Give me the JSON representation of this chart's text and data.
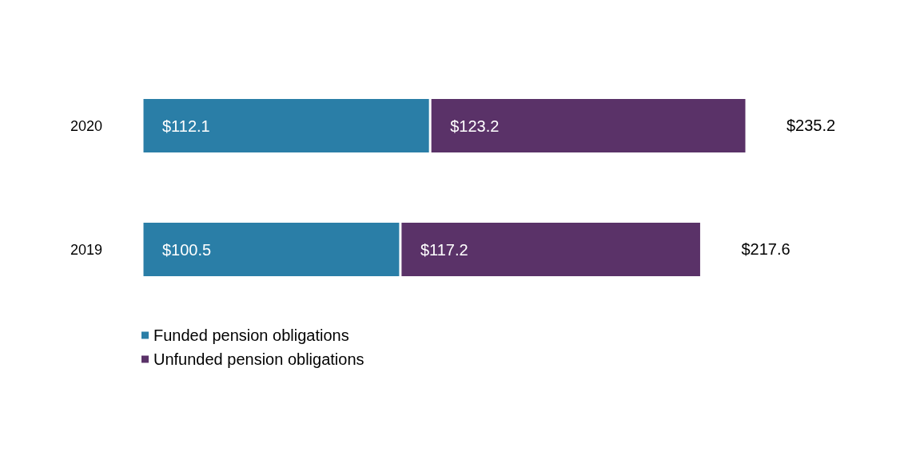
{
  "chart_data": {
    "type": "bar",
    "orientation": "horizontal",
    "stacked": true,
    "categories": [
      "2020",
      "2019"
    ],
    "series": [
      {
        "name": "Funded pension obligations",
        "color": "#2a7ea7",
        "values": [
          112.1,
          100.5
        ],
        "value_labels": [
          "$112.1",
          "$100.5"
        ]
      },
      {
        "name": "Unfunded pension obligations",
        "color": "#5a3268",
        "values": [
          123.2,
          117.2
        ],
        "value_labels": [
          "$123.2",
          "$117.2"
        ]
      }
    ],
    "totals": [
      "$235.2",
      "$217.6"
    ],
    "legend": "bottom left"
  }
}
